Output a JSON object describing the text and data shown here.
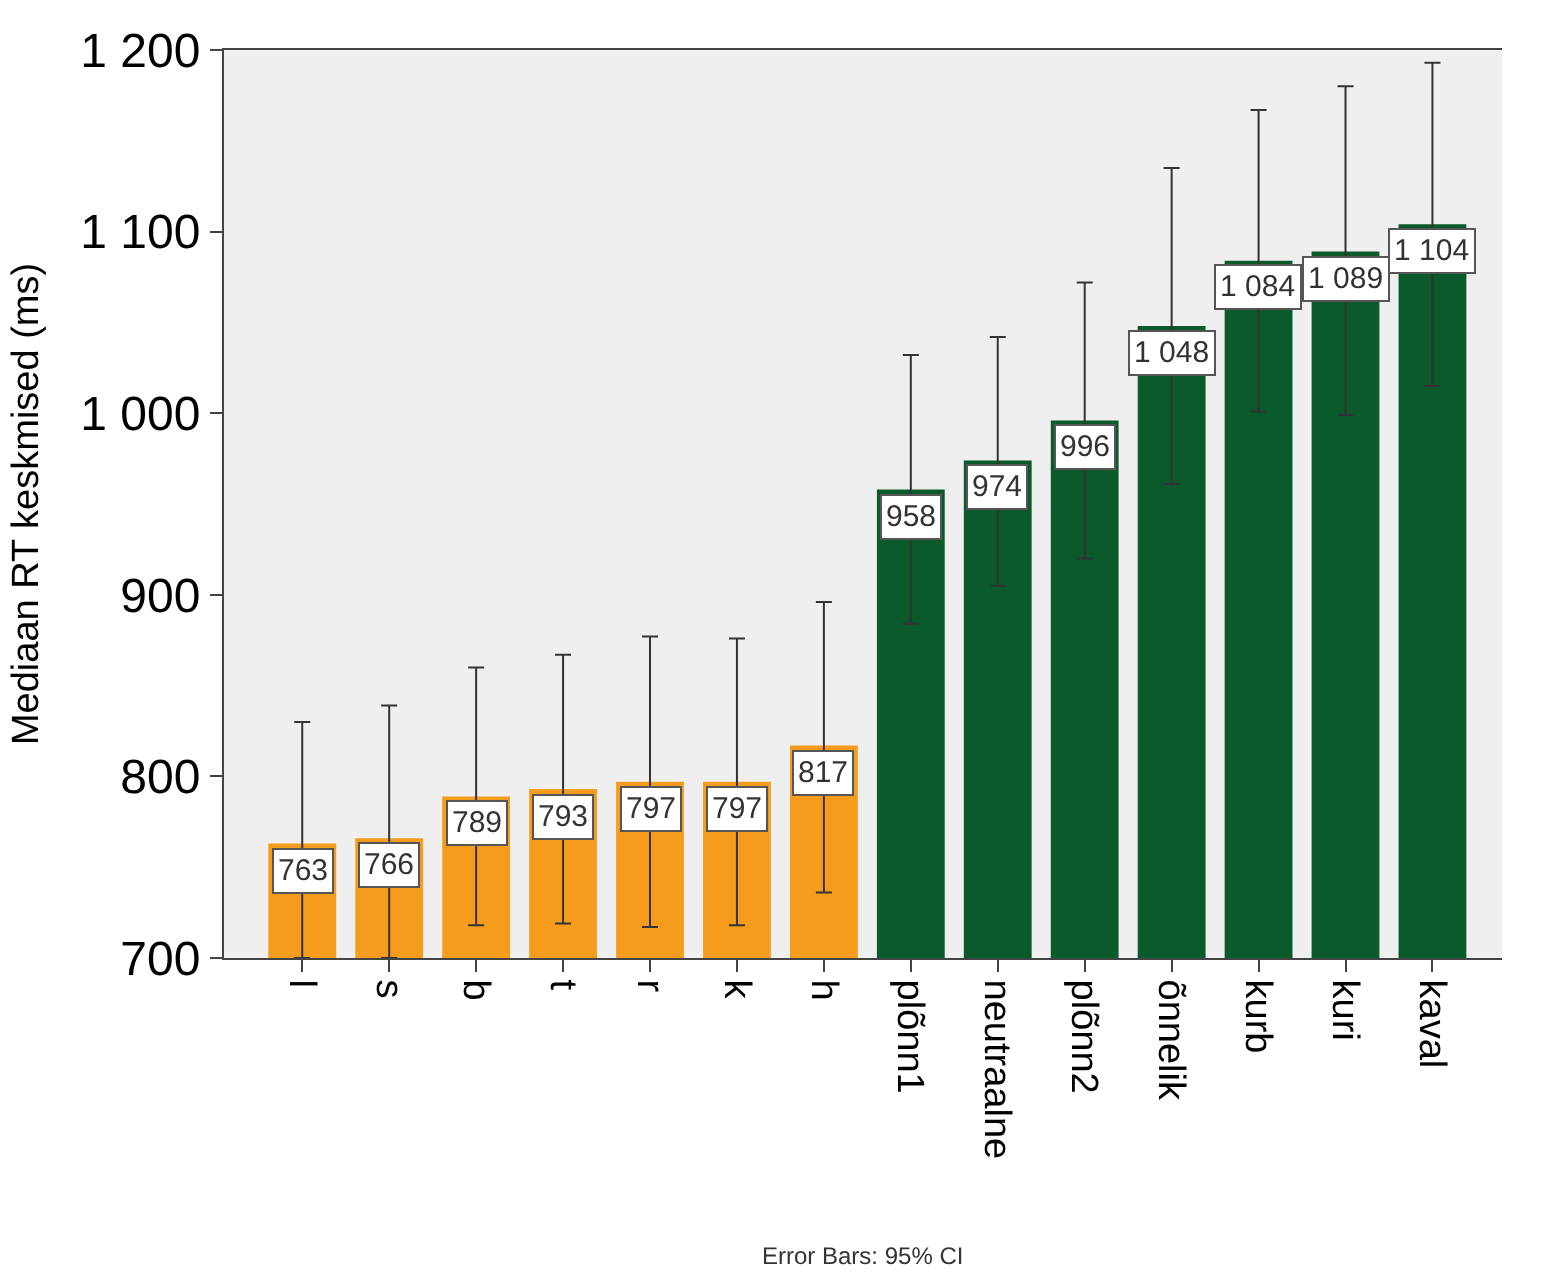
{
  "chart_data": {
    "type": "bar",
    "ylabel": "Mediaan RT keskmised (ms)",
    "categories": [
      "l",
      "s",
      "b",
      "t",
      "r",
      "k",
      "h",
      "plõnn1",
      "neutraalne",
      "plõnn2",
      "õnnelik",
      "kurb",
      "kuri",
      "kaval"
    ],
    "values": [
      763,
      766,
      789,
      793,
      797,
      797,
      817,
      958,
      974,
      996,
      1048,
      1084,
      1089,
      1104
    ],
    "colors": [
      "#f59c1c",
      "#f59c1c",
      "#f59c1c",
      "#f59c1c",
      "#f59c1c",
      "#f59c1c",
      "#f59c1c",
      "#0b5a2b",
      "#0b5a2b",
      "#0b5a2b",
      "#0b5a2b",
      "#0b5a2b",
      "#0b5a2b",
      "#0b5a2b"
    ],
    "value_labels": [
      "763",
      "766",
      "789",
      "793",
      "797",
      "797",
      "817",
      "958",
      "974",
      "996",
      "1 048",
      "1 084",
      "1 089",
      "1 104"
    ],
    "errors": [
      [
        700,
        830
      ],
      [
        700,
        839
      ],
      [
        718,
        860
      ],
      [
        719,
        867
      ],
      [
        717,
        877
      ],
      [
        718,
        876
      ],
      [
        736,
        896
      ],
      [
        884,
        1032
      ],
      [
        905,
        1042
      ],
      [
        920,
        1072
      ],
      [
        961,
        1135
      ],
      [
        1001,
        1167
      ],
      [
        999,
        1180
      ],
      [
        1015,
        1193
      ]
    ],
    "ylim": [
      700,
      1200
    ],
    "yticks": [
      700,
      800,
      900,
      {
        "value": 1000,
        "label": "1 000"
      },
      {
        "value": 1100,
        "label": "1 100"
      },
      {
        "value": 1200,
        "label": "1 200"
      }
    ],
    "grid": false,
    "annotations": [
      "Error Bars: 95% CI"
    ]
  }
}
